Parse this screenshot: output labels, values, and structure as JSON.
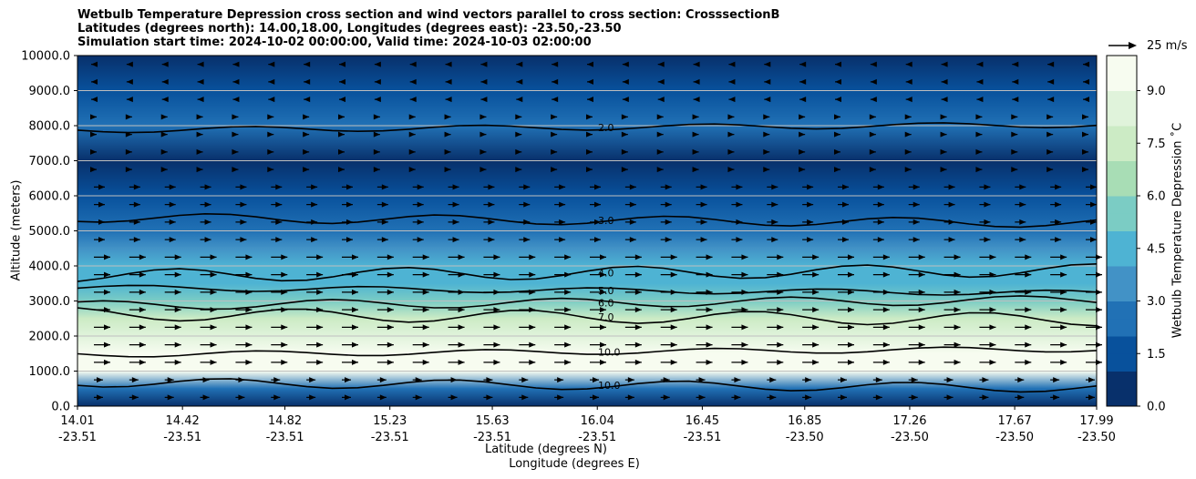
{
  "title_lines": [
    "Wetbulb Temperature Depression cross section and wind vectors parallel to cross section: CrosssectionB",
    "Latitudes (degrees north): 14.00,18.00, Longitudes (degrees east): -23.50,-23.50",
    "Simulation start time: 2024-10-02 00:00:00, Valid time: 2024-10-03 02:00:00"
  ],
  "chart_data": {
    "type": "heatmap",
    "ylabel": "Altitude (meters)",
    "xlabel_line1": "Latitude (degrees N)",
    "xlabel_line2": "Longitude (degrees E)",
    "colorbar_label": "Wetbulb Temperature Depression ˚C",
    "colorbar_ticks": [
      "0.0",
      "1.5",
      "3.0",
      "4.5",
      "6.0",
      "7.5",
      "9.0"
    ],
    "colorbar_range": [
      0,
      10
    ],
    "ylim": [
      0,
      10000
    ],
    "y_ticks": [
      "0.0",
      "1000.0",
      "2000.0",
      "3000.0",
      "4000.0",
      "5000.0",
      "6000.0",
      "7000.0",
      "8000.0",
      "9000.0",
      "10000.0"
    ],
    "x_ticks": [
      {
        "lat": "14.01",
        "lon": "-23.51"
      },
      {
        "lat": "14.42",
        "lon": "-23.51"
      },
      {
        "lat": "14.82",
        "lon": "-23.51"
      },
      {
        "lat": "15.23",
        "lon": "-23.51"
      },
      {
        "lat": "15.63",
        "lon": "-23.51"
      },
      {
        "lat": "16.04",
        "lon": "-23.51"
      },
      {
        "lat": "16.45",
        "lon": "-23.51"
      },
      {
        "lat": "16.85",
        "lon": "-23.50"
      },
      {
        "lat": "17.26",
        "lon": "-23.50"
      },
      {
        "lat": "17.67",
        "lon": "-23.50"
      },
      {
        "lat": "17.99",
        "lon": "-23.50"
      }
    ],
    "xlim": [
      14.01,
      17.99
    ],
    "grid": "horizontal",
    "depression_profile": [
      {
        "alt": 0,
        "value": 0.5
      },
      {
        "alt": 500,
        "value": 2.0
      },
      {
        "alt": 1000,
        "value": 9.5
      },
      {
        "alt": 1500,
        "value": 9.0
      },
      {
        "alt": 2000,
        "value": 8.0
      },
      {
        "alt": 2500,
        "value": 7.0
      },
      {
        "alt": 3000,
        "value": 5.5
      },
      {
        "alt": 3500,
        "value": 4.5
      },
      {
        "alt": 4000,
        "value": 4.0
      },
      {
        "alt": 4500,
        "value": 3.5
      },
      {
        "alt": 5000,
        "value": 2.5
      },
      {
        "alt": 6000,
        "value": 1.2
      },
      {
        "alt": 7000,
        "value": 0.8
      },
      {
        "alt": 8000,
        "value": 2.2
      },
      {
        "alt": 9000,
        "value": 1.0
      },
      {
        "alt": 10000,
        "value": 0.6
      }
    ],
    "contour_lines": [
      {
        "label": "2.0",
        "alt": 7950
      },
      {
        "label": "3.0",
        "alt": 5300
      },
      {
        "label": "4.0",
        "alt": 3800
      },
      {
        "label": "5.0",
        "alt": 3300
      },
      {
        "label": "6.0",
        "alt": 2950
      },
      {
        "label": "7.0",
        "alt": 2550
      },
      {
        "label": "10.0",
        "alt": 1550
      },
      {
        "label": "10.0",
        "alt": 600
      }
    ],
    "reference_vector": "25 m/s"
  },
  "colors": {
    "cmap": [
      "#08306b",
      "#08519c",
      "#2171b5",
      "#4292c6",
      "#4eb3d3",
      "#7bccc4",
      "#a8ddb5",
      "#ccebc5",
      "#e0f3db",
      "#f7fcf0"
    ],
    "contour": "#000000",
    "grid": "#bfbfbf"
  }
}
